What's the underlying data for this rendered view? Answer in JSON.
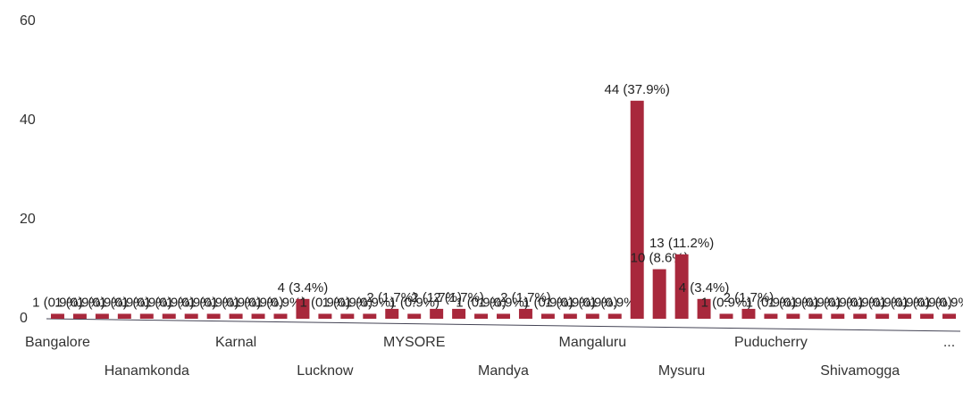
{
  "chart_data": {
    "type": "bar",
    "categories": [
      "Bangalore",
      null,
      null,
      null,
      "Hanamkonda",
      null,
      null,
      null,
      "Karnal",
      null,
      null,
      null,
      "Lucknow",
      null,
      null,
      null,
      "MYSORE",
      null,
      null,
      null,
      "Mandya",
      null,
      null,
      null,
      "Mangaluru",
      null,
      null,
      null,
      "Mysuru",
      null,
      null,
      null,
      "Puducherry",
      null,
      null,
      null,
      "Shivamogga",
      null,
      null,
      null,
      "..."
    ],
    "values": [
      1,
      1,
      1,
      1,
      1,
      1,
      1,
      1,
      1,
      1,
      1,
      4,
      1,
      1,
      1,
      2,
      1,
      2,
      2,
      1,
      1,
      2,
      1,
      1,
      1,
      1,
      44,
      10,
      13,
      4,
      1,
      2,
      1,
      1,
      1,
      1,
      1,
      1,
      1,
      1,
      1
    ],
    "value_labels": [
      "1 (0.9%)",
      "1 (0.9%)",
      "1 (0.9%)",
      "1 (0.9%)",
      "1 (0.9%)",
      "1 (0.9%)",
      "1 (0.9%)",
      "1 (0.9%)",
      "1 (0.9%)",
      "1 (0.9%)",
      "1 (0.9%)",
      "4 (3.4%)",
      "1 (0.9%)",
      "1 (0.9%)",
      "1 (0.9%)",
      "2 (1.7%)",
      "1 (0.9%)",
      "2 (1.7%)",
      "2 (1.7%)",
      "1 (0.9%)",
      "1 (0.9%)",
      "2 (1.7%)",
      "1 (0.9%)",
      "1 (0.9%)",
      "1 (0.9%)",
      "1 (0.9%)",
      "44 (37.9%)",
      "10 (8.6%)",
      "13 (11.2%)",
      "4 (3.4%)",
      "1 (0.9%)",
      "2 (1.7%)",
      "1 (0.9%)",
      "1 (0.9%)",
      "1 (0.9%)",
      "1 (0.9%)",
      "1 (0.9%)",
      "1 (0.9%)",
      "1 (0.9%)",
      "1 (0.9%)",
      "1 (0.9%)"
    ],
    "color": "#a8283c",
    "ylim": [
      0,
      60
    ],
    "yticks": [
      0,
      20,
      40,
      60
    ],
    "grid": false
  }
}
